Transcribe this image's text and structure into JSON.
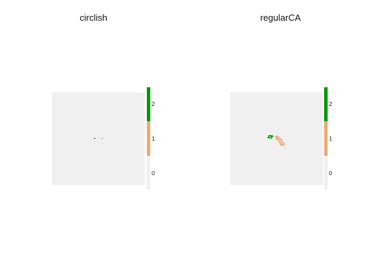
{
  "panels": [
    {
      "title": "circlish",
      "cells_state1": [
        [
          71,
          66
        ],
        [
          72,
          66
        ]
      ],
      "cells_state2": [
        [
          61,
          66
        ]
      ]
    },
    {
      "title": "regularCA",
      "cells_state1": [
        [
          66,
          63
        ],
        [
          68,
          63
        ],
        [
          67,
          64
        ],
        [
          69,
          64
        ],
        [
          66,
          65
        ],
        [
          68,
          65
        ],
        [
          70,
          65
        ],
        [
          72,
          66
        ],
        [
          67,
          66
        ],
        [
          69,
          66
        ],
        [
          71,
          67
        ],
        [
          73,
          67
        ],
        [
          68,
          67
        ],
        [
          70,
          68
        ],
        [
          72,
          68
        ],
        [
          74,
          68
        ],
        [
          69,
          69
        ],
        [
          71,
          70
        ],
        [
          73,
          70
        ],
        [
          75,
          70
        ],
        [
          70,
          71
        ],
        [
          72,
          72
        ],
        [
          74,
          72
        ],
        [
          76,
          72
        ],
        [
          71,
          73
        ],
        [
          73,
          73
        ],
        [
          75,
          74
        ],
        [
          77,
          74
        ],
        [
          72,
          75
        ],
        [
          74,
          75
        ],
        [
          76,
          75
        ],
        [
          78,
          74
        ],
        [
          73,
          76
        ],
        [
          75,
          76
        ],
        [
          77,
          76
        ],
        [
          65,
          64
        ],
        [
          66,
          67
        ],
        [
          67,
          68
        ]
      ],
      "cells_state2": [
        [
          56,
          62
        ],
        [
          57,
          62
        ],
        [
          58,
          62
        ],
        [
          55,
          63
        ],
        [
          59,
          63
        ],
        [
          55,
          64
        ],
        [
          58,
          64
        ],
        [
          56,
          65
        ],
        [
          57,
          65
        ],
        [
          60,
          64
        ],
        [
          60,
          62
        ],
        [
          54,
          65
        ],
        [
          59,
          66
        ],
        [
          61,
          63
        ]
      ]
    }
  ],
  "legend": {
    "labels": [
      "2",
      "1",
      "0"
    ],
    "colors": [
      "#009900",
      "#e8ac78",
      "#f0f0f0"
    ]
  }
}
